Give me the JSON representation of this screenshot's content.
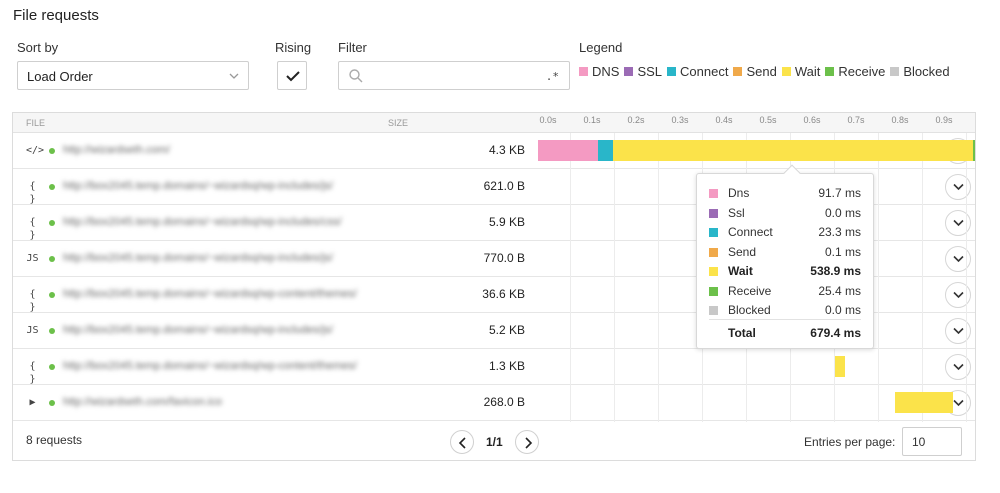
{
  "title": "File requests",
  "controls": {
    "sort_label": "Sort by",
    "sort_value": "Load Order",
    "rising_label": "Rising",
    "rising_checked": true,
    "filter_label": "Filter",
    "filter_value": "",
    "filter_regex_hint": ".*",
    "legend_label": "Legend"
  },
  "legend": [
    {
      "name": "DNS",
      "color": "#f49ac2"
    },
    {
      "name": "SSL",
      "color": "#9b6bb5"
    },
    {
      "name": "Connect",
      "color": "#29b6c9"
    },
    {
      "name": "Send",
      "color": "#f0a94a"
    },
    {
      "name": "Wait",
      "color": "#fbe34a"
    },
    {
      "name": "Receive",
      "color": "#6cc04a"
    },
    {
      "name": "Blocked",
      "color": "#c8c8c8"
    }
  ],
  "table": {
    "col_file": "FILE",
    "col_size": "SIZE",
    "ticks": [
      "0.0s",
      "0.1s",
      "0.2s",
      "0.3s",
      "0.4s",
      "0.5s",
      "0.6s",
      "0.7s",
      "0.8s",
      "0.9s"
    ],
    "rows": [
      {
        "icon": "html-file-icon",
        "glyph": "</>",
        "url": "http://wizardseth.com/",
        "size": "4.3 KB"
      },
      {
        "icon": "json-file-icon",
        "glyph": "{ }",
        "url": "http://box2045.temp.domains/~wizardsq/wp-includes/js/",
        "size": "621.0 B"
      },
      {
        "icon": "json-file-icon",
        "glyph": "{ }",
        "url": "http://box2045.temp.domains/~wizardsq/wp-includes/css/",
        "size": "5.9 KB"
      },
      {
        "icon": "js-file-icon",
        "glyph": "JS",
        "url": "http://box2045.temp.domains/~wizardsq/wp-includes/js/",
        "size": "770.0 B"
      },
      {
        "icon": "json-file-icon",
        "glyph": "{ }",
        "url": "http://box2045.temp.domains/~wizardsq/wp-content/themes/",
        "size": "36.6 KB"
      },
      {
        "icon": "js-file-icon",
        "glyph": "JS",
        "url": "http://box2045.temp.domains/~wizardsq/wp-includes/js/",
        "size": "5.2 KB"
      },
      {
        "icon": "json-file-icon",
        "glyph": "{ }",
        "url": "http://box2045.temp.domains/~wizardsq/wp-content/themes/",
        "size": "1.3 KB"
      },
      {
        "icon": "media-file-icon",
        "glyph": "▶",
        "url": "http://wizardseth.com/favicon.ico",
        "size": "268.0 B"
      }
    ]
  },
  "footer": {
    "count": "8 requests",
    "page": "1/1",
    "entries_label": "Entries per page:",
    "entries_value": "10"
  },
  "tooltip": {
    "rows": [
      {
        "name": "Dns",
        "value": "91.7 ms",
        "color": "#f49ac2"
      },
      {
        "name": "Ssl",
        "value": "0.0 ms",
        "color": "#9b6bb5"
      },
      {
        "name": "Connect",
        "value": "23.3 ms",
        "color": "#29b6c9"
      },
      {
        "name": "Send",
        "value": "0.1 ms",
        "color": "#f0a94a"
      },
      {
        "name": "Wait",
        "value": "538.9 ms",
        "color": "#fbe34a"
      },
      {
        "name": "Receive",
        "value": "25.4 ms",
        "color": "#6cc04a"
      },
      {
        "name": "Blocked",
        "value": "0.0 ms",
        "color": "#c8c8c8"
      }
    ],
    "total_label": "Total",
    "total_value": "679.4 ms"
  }
}
